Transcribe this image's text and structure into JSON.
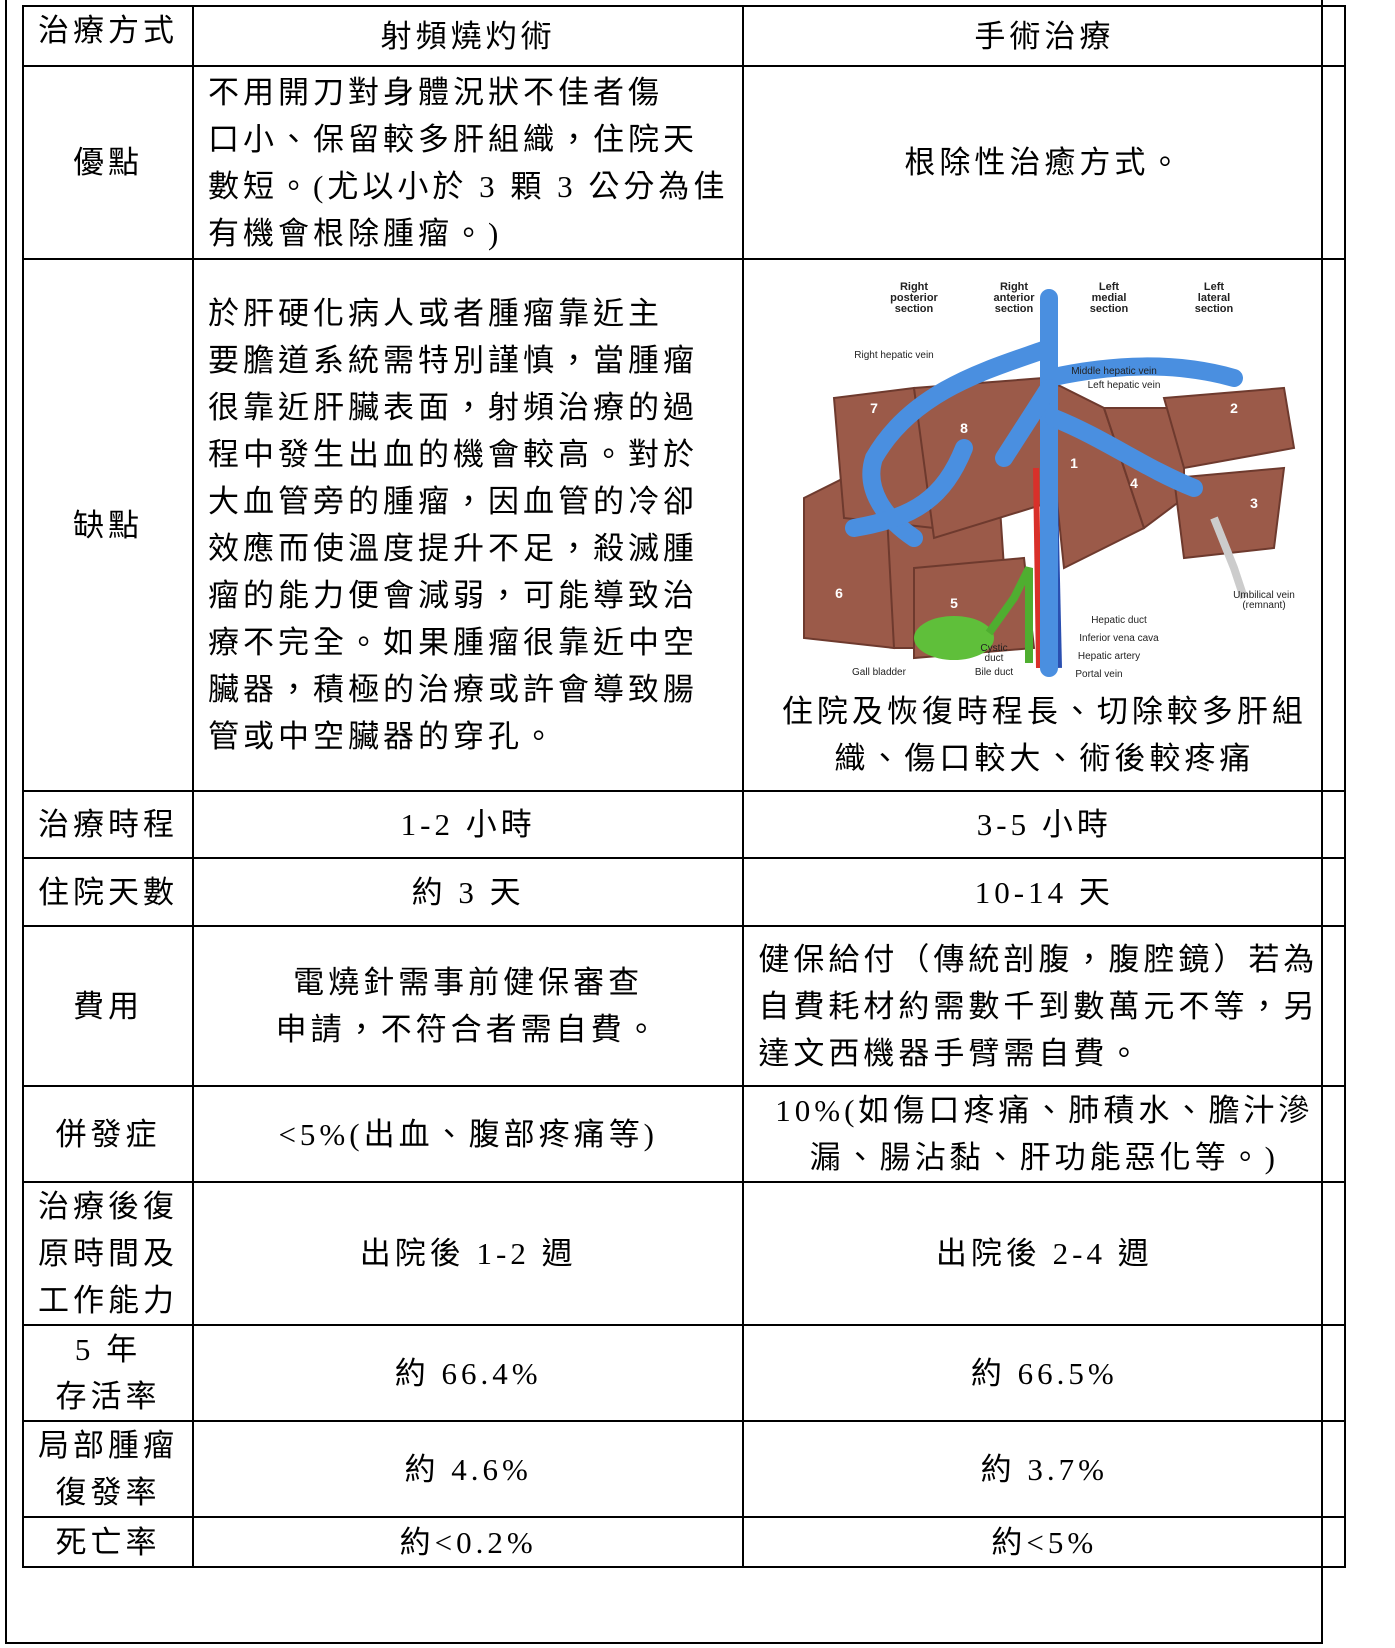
{
  "table": {
    "header": [
      "治療方式",
      "射頻燒灼術",
      "手術治療"
    ],
    "rows": [
      [
        [
          "優點"
        ],
        [
          "不用開刀對身體況狀不佳者傷",
          "口小、保留較多肝組織，住院天",
          "數短。(尤以小於 3 顆 3 公分為佳",
          "有機會根除腫瘤。)"
        ],
        [
          "根除性治癒方式。"
        ]
      ],
      [
        [
          "缺點"
        ],
        [
          "於肝硬化病人或者腫瘤靠近主",
          "要膽道系統需特別謹慎，當腫瘤",
          "很靠近肝臟表面，射頻治療的過",
          "程中發生出血的機會較高。對於",
          "大血管旁的腫瘤，因血管的冷卻",
          "效應而使溫度提升不足，殺滅腫",
          "瘤的能力便會減弱，可能導致治",
          "療不完全。如果腫瘤很靠近中空",
          "臟器，積極的治療或許會導致腸",
          "管或中空臟器的穿孔。"
        ],
        {
          "figure": {
            "labels": [
              [
                "Right",
                "posterior",
                "section"
              ],
              [
                "Right",
                "anterior",
                "section"
              ],
              [
                "Left",
                "medial",
                "section"
              ],
              [
                "Left",
                "lateral",
                "section"
              ],
              [
                "Right hepatic vein"
              ],
              [
                "Middle hepatic vein"
              ],
              [
                "Left hepatic vein"
              ],
              [
                "Umbilical vein",
                "(remnant)"
              ],
              [
                "Hepatic duct"
              ],
              [
                "Inferior vena cava"
              ],
              [
                "Hepatic artery"
              ],
              [
                "Portal vein"
              ],
              [
                "Cystic",
                "duct"
              ],
              [
                "Gall bladder"
              ],
              [
                "Bile duct"
              ]
            ],
            "segments": [
              "1",
              "2",
              "3",
              "4",
              "5",
              "6",
              "7",
              "8"
            ]
          },
          "lines": [
            "住院及恢復時程長、切除較多肝組",
            "織、傷口較大、術後較疼痛"
          ]
        }
      ],
      [
        [
          "治療時程"
        ],
        [
          "1-2 小時"
        ],
        [
          "3-5 小時"
        ]
      ],
      [
        [
          "住院天數"
        ],
        [
          "約 3 天"
        ],
        [
          "10-14 天"
        ]
      ],
      [
        [
          "費用"
        ],
        [
          "電燒針需事前健保審查",
          "申請，不符合者需自費。"
        ],
        [
          "健保給付（傳統剖腹，腹腔鏡）若為",
          "自費耗材約需數千到數萬元不等，另",
          "達文西機器手臂需自費。"
        ]
      ],
      [
        [
          "併發症"
        ],
        [
          "<5%(出血、腹部疼痛等)"
        ],
        [
          "10%(如傷口疼痛、肺積水、膽汁滲",
          "漏、腸沾黏、肝功能惡化等。)"
        ]
      ],
      [
        [
          "治療後復",
          "原時間及",
          "工作能力"
        ],
        [
          "出院後 1-2 週"
        ],
        [
          "出院後 2-4 週"
        ]
      ],
      [
        [
          "5 年",
          "存活率"
        ],
        [
          "約 66.4%"
        ],
        [
          "約 66.5%"
        ]
      ],
      [
        [
          "局部腫瘤",
          "復發率"
        ],
        [
          "約 4.6%"
        ],
        [
          "約 3.7%"
        ]
      ],
      [
        [
          "死亡率"
        ],
        [
          "約<0.2%"
        ],
        [
          "約<5%"
        ]
      ]
    ]
  }
}
